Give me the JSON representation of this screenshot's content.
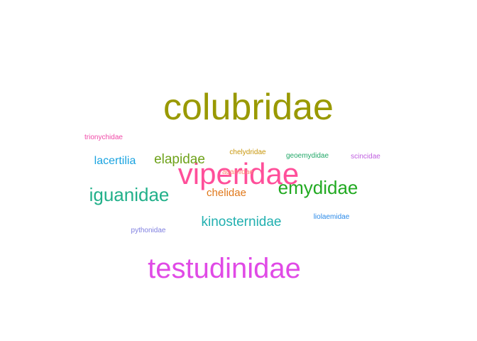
{
  "chart_data": {
    "type": "wordcloud",
    "words": [
      {
        "text": "colubridae",
        "weight": 12,
        "color": "#999900"
      },
      {
        "text": "viperidae",
        "weight": 10,
        "color": "#ff4f9a"
      },
      {
        "text": "testudinidae",
        "weight": 9,
        "color": "#e04ae6"
      },
      {
        "text": "emydidae",
        "weight": 5,
        "color": "#22aa22"
      },
      {
        "text": "iguanidae",
        "weight": 5,
        "color": "#22b08a"
      },
      {
        "text": "kinosternidae",
        "weight": 3.5,
        "color": "#22b0b0"
      },
      {
        "text": "elapidae",
        "weight": 3.5,
        "color": "#6ea21a"
      },
      {
        "text": "lacertilia",
        "weight": 3,
        "color": "#1aa3e0"
      },
      {
        "text": "chelidae",
        "weight": 2.5,
        "color": "#e0781a"
      },
      {
        "text": "trionychidae",
        "weight": 1,
        "color": "#f04aa8"
      },
      {
        "text": "chelydridae",
        "weight": 1,
        "color": "#c8960a"
      },
      {
        "text": "geoemydidae",
        "weight": 1,
        "color": "#22a868"
      },
      {
        "text": "scincidae",
        "weight": 1,
        "color": "#c060e0"
      },
      {
        "text": "agamidae",
        "weight": 1,
        "color": "#ff8878"
      },
      {
        "text": "liolaemidae",
        "weight": 1,
        "color": "#2a8ae8"
      },
      {
        "text": "pythonidae",
        "weight": 1,
        "color": "#8080e0"
      }
    ]
  }
}
